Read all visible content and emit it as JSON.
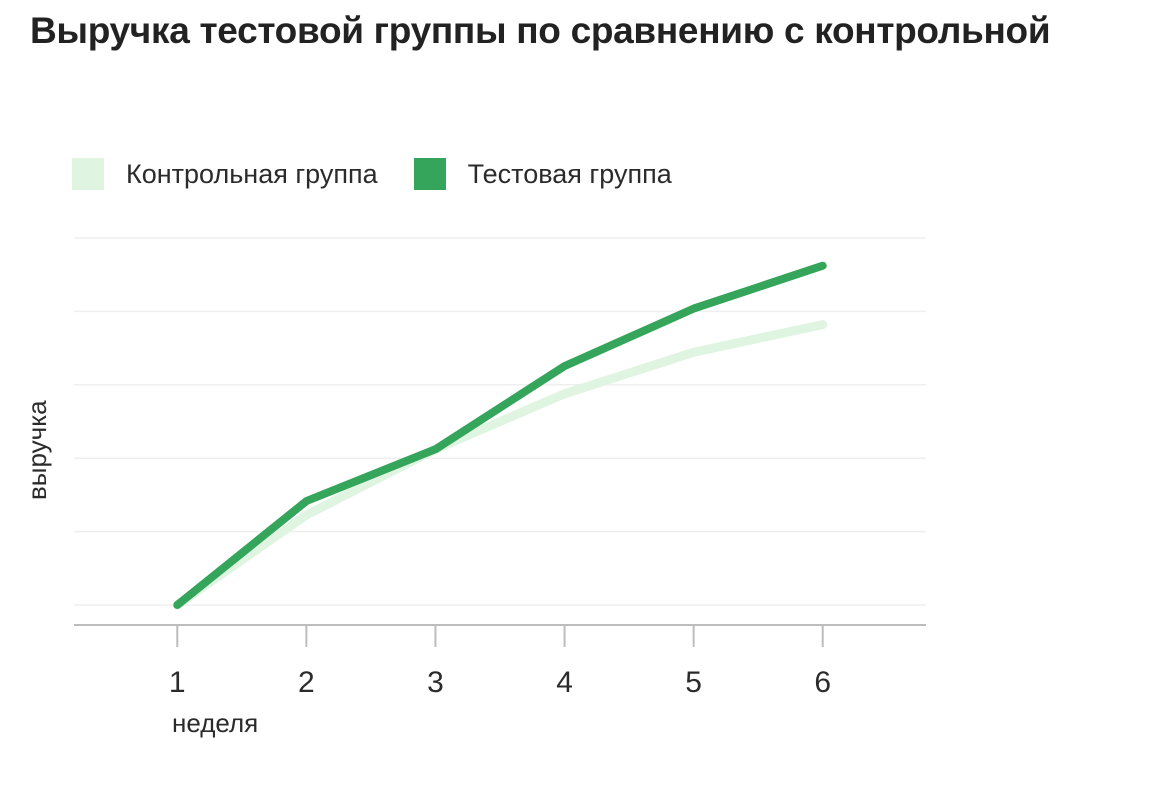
{
  "title": "Выручка тестовой группы по сравнению с контрольной",
  "chart_data": {
    "type": "line",
    "title": "Выручка тестовой группы по сравнению с контрольной",
    "xlabel": "неделя",
    "ylabel": "выручка",
    "x": [
      1,
      2,
      3,
      4,
      5,
      6
    ],
    "xlim": [
      0.2,
      6.8
    ],
    "ylim": [
      0,
      5.3
    ],
    "grid": true,
    "legend_position": "top-left",
    "series": [
      {
        "name": "Контрольная группа",
        "color": "#dff5e1",
        "values": [
          0,
          1.3,
          2.25,
          3.05,
          3.65,
          4.05
        ]
      },
      {
        "name": "Тестовая группа",
        "color": "#34a55a",
        "values": [
          0,
          1.5,
          2.25,
          3.45,
          4.28,
          4.9
        ]
      }
    ]
  }
}
